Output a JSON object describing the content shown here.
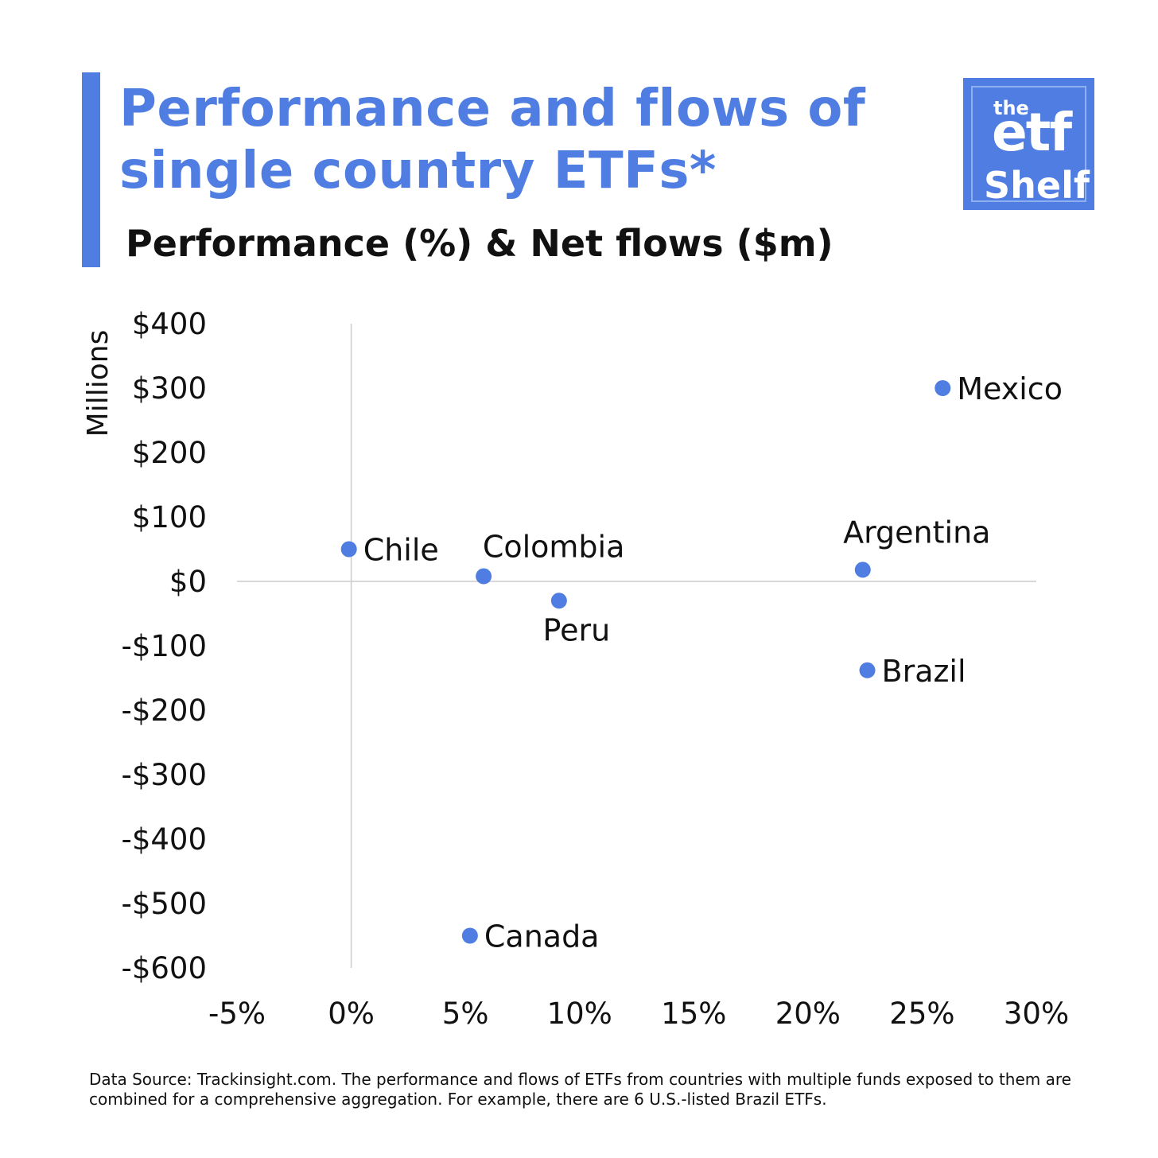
{
  "header": {
    "title": "Performance and flows of\nsingle country ETFs*",
    "subtitle": "Performance (%) & Net flows ($m)"
  },
  "logo": {
    "the": "the",
    "etf": "etf",
    "shelf": "Shelf"
  },
  "colors": {
    "accent": "#4f7de2",
    "point": "#4f7de2",
    "axis": "#cccccc"
  },
  "chart_data": {
    "type": "scatter",
    "title": "Performance (%) & Net flows ($m)",
    "xlabel": "",
    "ylabel": "Millions",
    "xlim": [
      -5,
      30
    ],
    "ylim": [
      -600,
      400
    ],
    "x_ticks": [
      -5,
      0,
      5,
      10,
      15,
      20,
      25,
      30
    ],
    "x_tick_labels": [
      "-5%",
      "0%",
      "5%",
      "10%",
      "15%",
      "20%",
      "25%",
      "30%"
    ],
    "y_ticks": [
      400,
      300,
      200,
      100,
      0,
      -100,
      -200,
      -300,
      -400,
      -500,
      -600
    ],
    "y_tick_labels": [
      "$400",
      "$300",
      "$200",
      "$100",
      "$0",
      "-$100",
      "-$200",
      "-$300",
      "-$400",
      "-$500",
      "-$600"
    ],
    "grid": false,
    "points": [
      {
        "label": "Mexico",
        "x": 25.9,
        "y": 300
      },
      {
        "label": "Chile",
        "x": -0.1,
        "y": 50
      },
      {
        "label": "Colombia",
        "x": 5.8,
        "y": 8
      },
      {
        "label": "Peru",
        "x": 9.1,
        "y": -30
      },
      {
        "label": "Argentina",
        "x": 22.4,
        "y": 18
      },
      {
        "label": "Brazil",
        "x": 22.6,
        "y": -138
      },
      {
        "label": "Canada",
        "x": 5.2,
        "y": -550
      }
    ]
  },
  "footnote": "Data Source: Trackinsight.com. The performance and flows of ETFs from countries with multiple funds exposed to them are combined for a comprehensive aggregation. For example, there are 6 U.S.-listed Brazil ETFs."
}
